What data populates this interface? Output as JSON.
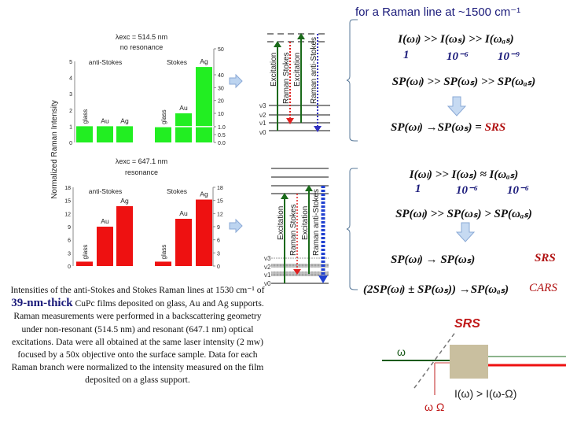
{
  "header": {
    "title": "for  a  Raman line at  ~1500 cm⁻¹"
  },
  "y_axis_label": "Normalized Raman Intensity",
  "chart_data": [
    {
      "type": "bar",
      "title": "λexc = 514.5 nm",
      "subtitle": "no resonance",
      "color": "#22ee22",
      "groups": [
        {
          "name": "anti-Stokes",
          "categories": [
            "glass",
            "Au",
            "Ag"
          ],
          "values": [
            1,
            1,
            1
          ]
        },
        {
          "name": "Stokes",
          "categories": [
            "glass",
            "Au",
            "Ag"
          ],
          "values": [
            1,
            10,
            43
          ]
        }
      ],
      "left_ticks": [
        "0",
        "1",
        "2",
        "3",
        "4",
        "5"
      ],
      "right_ticks": [
        "0.0",
        "0.5",
        "1.0",
        "10",
        "20",
        "30",
        "40",
        "50"
      ],
      "ylim_left": [
        0,
        5
      ],
      "right_axis": "broken"
    },
    {
      "type": "bar",
      "title": "λexc = 647.1 nm",
      "subtitle": "resonance",
      "color": "#ee1111",
      "groups": [
        {
          "name": "anti-Stokes",
          "categories": [
            "glass",
            "Au",
            "Ag"
          ],
          "values": [
            1,
            9,
            13.7
          ]
        },
        {
          "name": "Stokes",
          "categories": [
            "glass",
            "Au",
            "Ag"
          ],
          "values": [
            1,
            10.8,
            15.2
          ]
        }
      ],
      "left_ticks": [
        "0",
        "3",
        "6",
        "9",
        "12",
        "15",
        "18"
      ],
      "right_ticks": [
        "0",
        "3",
        "6",
        "9",
        "12",
        "15",
        "18"
      ],
      "ylim_left": [
        0,
        18
      ]
    }
  ],
  "diagram_top": {
    "levels": [
      "ν3",
      "ν2",
      "ν1",
      "ν0"
    ],
    "arrows": [
      "Excitation",
      "Raman Stokes",
      "Excitation",
      "Raman anti-Stokes"
    ]
  },
  "diagram_bottom": {
    "levels": [
      "ν3",
      "ν2",
      "ν1",
      "ν0"
    ],
    "arrows": [
      "Excitation",
      "Raman Stokes",
      "Excitation",
      "Raman anti-Stokes"
    ]
  },
  "top_block": {
    "intensity": "I(ωₗ)  >> I(ωₛ)  >> I(ωₐₛ)",
    "values": [
      "1",
      "10⁻⁶",
      "10⁻⁹"
    ],
    "power": "SP(ωₗ)  >> SP(ωₛ)  >> SP(ωₐₛ)",
    "result": "SP(ωₗ)  →SP(ωₛ) = ",
    "result_tag": "SRS"
  },
  "bottom_block": {
    "intensity": "I(ωₗ)  >> I(ωₛ)  ≈  I(ωₐₛ)",
    "values": [
      "1",
      "10⁻⁶",
      "10⁻⁶"
    ],
    "power": "SP(ωₗ)  >> SP(ωₛ)  > SP(ωₐₛ)",
    "result": "SP(ωₗ)  →  SP(ωₛ)",
    "result_tag": "SRS",
    "cars": "(2SP(ωₗ) ± SP(ωₛ)) →SP(ωₐₛ)",
    "cars_tag": "CARS"
  },
  "srs_diagram": {
    "title": "SRS",
    "omega": "ω",
    "omega_Omega": "ω Ω",
    "relation": "I(ω) > I(ω-Ω)"
  },
  "caption": {
    "part1": "Intensities of the anti-Stokes and Stokes Raman lines at 1530 cm⁻¹ of ",
    "highlight": "39-nm-thick",
    "part2": " CuPc films deposited on glass, Au and Ag supports. Raman measurements were performed in a backscattering geometry under non-resonant (514.5 nm) and resonant (647.1 nm) optical excitations. Data were all obtained at the same laser intensity (2 mw) focused by a 50x objective onto the surface sample. Data for each Raman branch were normalized to the intensity measured on the film deposited on a glass support."
  }
}
